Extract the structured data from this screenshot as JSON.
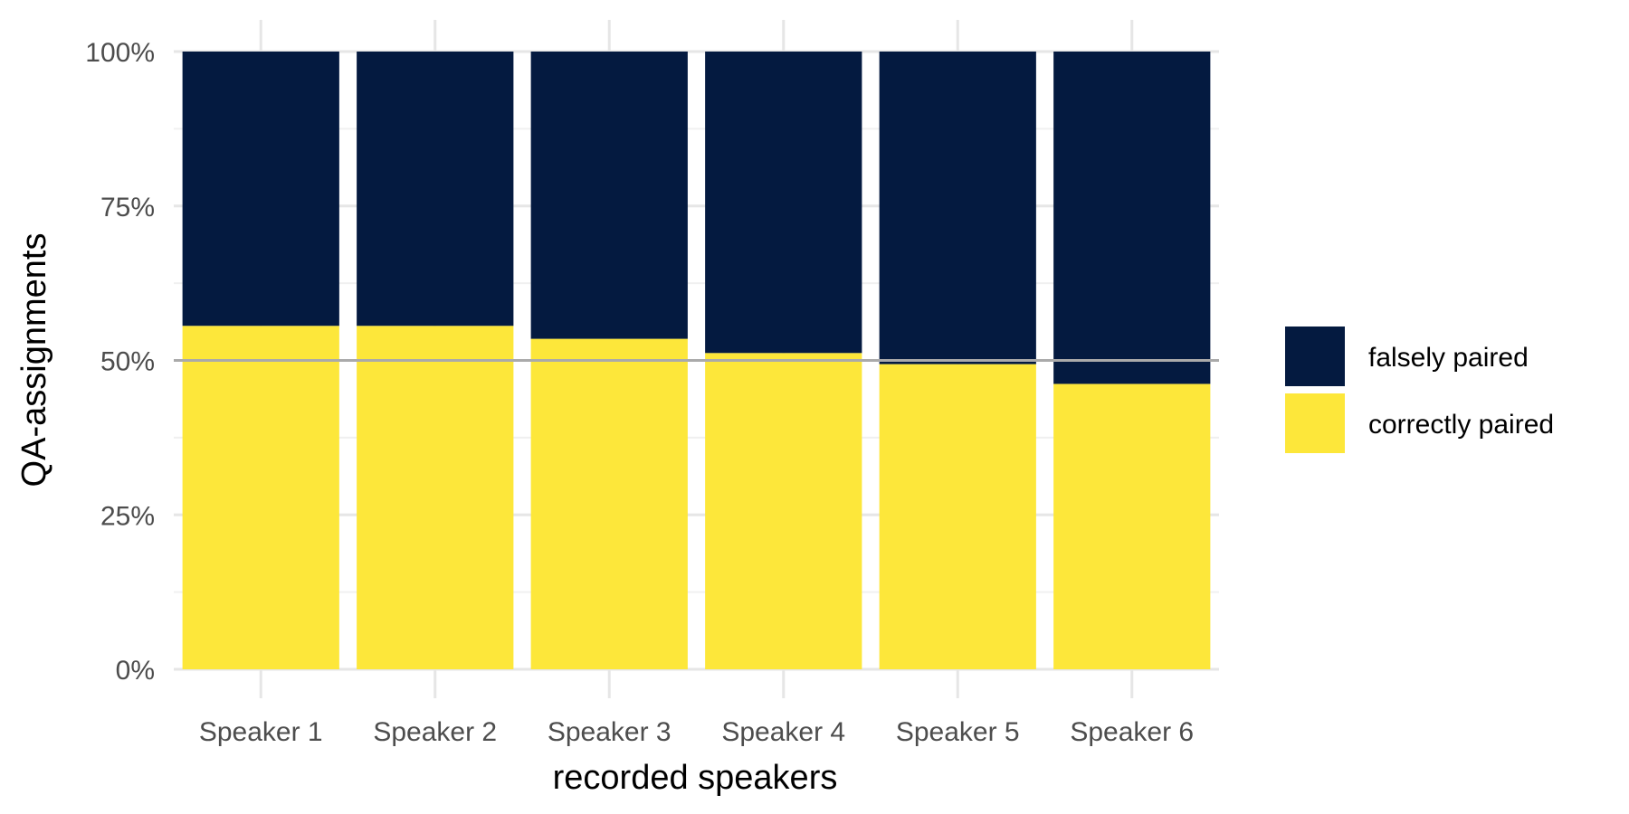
{
  "chart_data": {
    "type": "bar",
    "stacked": true,
    "percent": true,
    "categories": [
      "Speaker 1",
      "Speaker 2",
      "Speaker 3",
      "Speaker 4",
      "Speaker 5",
      "Speaker 6"
    ],
    "series": [
      {
        "name": "correctly paired",
        "color": "#FDE73A",
        "values": [
          55.6,
          55.6,
          53.5,
          51.2,
          49.4,
          46.2
        ]
      },
      {
        "name": "falsely paired",
        "color": "#041A40",
        "values": [
          44.4,
          44.4,
          46.5,
          48.8,
          50.6,
          53.8
        ]
      }
    ],
    "legend_order": [
      "falsely paired",
      "correctly paired"
    ],
    "xlabel": "recorded speakers",
    "ylabel": "QA-assignments",
    "ylim": [
      0,
      100
    ],
    "yticks": [
      "0%",
      "25%",
      "50%",
      "75%",
      "100%"
    ],
    "reference_line": {
      "value": 50,
      "color": "#AAAAAA"
    },
    "grid": true,
    "legend_position": "right"
  }
}
